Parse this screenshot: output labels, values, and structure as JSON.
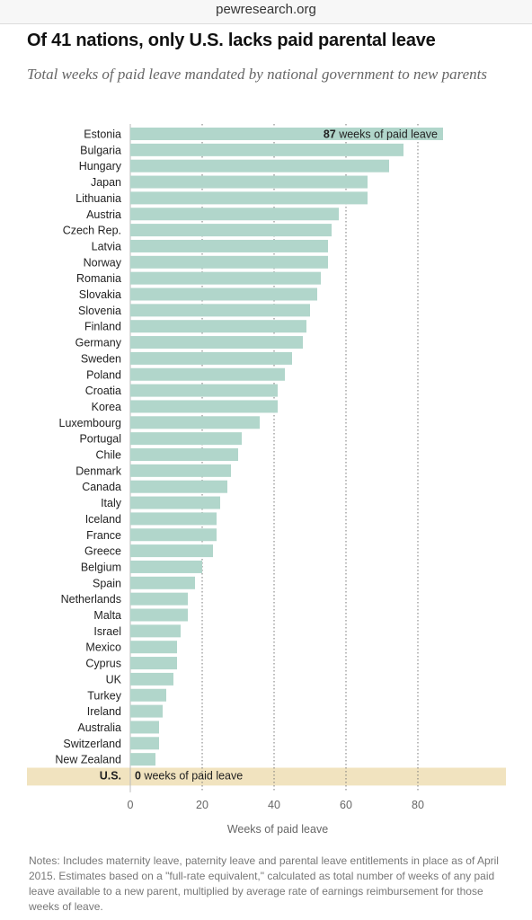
{
  "browser": {
    "url": "pewresearch.org"
  },
  "header": {
    "title": "Of 41 nations, only U.S. lacks paid parental leave",
    "subtitle": "Total weeks of paid leave mandated by national government to new parents"
  },
  "notes": "Notes: Includes maternity leave, paternity leave and parental leave entitlements in place as of April 2015. Estimates based on a \"full-rate equivalent,\" calculated as total number of weeks of any paid leave available to a new parent, multiplied by average rate of earnings reimbursement for those weeks of leave.",
  "colors": {
    "bar": "#b1d6cb",
    "highlight": "#f1e3bf",
    "gridline": "#777777"
  },
  "chart_data": {
    "type": "bar",
    "orientation": "horizontal",
    "categories": [
      "Estonia",
      "Bulgaria",
      "Hungary",
      "Japan",
      "Lithuania",
      "Austria",
      "Czech Rep.",
      "Latvia",
      "Norway",
      "Romania",
      "Slovakia",
      "Slovenia",
      "Finland",
      "Germany",
      "Sweden",
      "Poland",
      "Croatia",
      "Korea",
      "Luxembourg",
      "Portugal",
      "Chile",
      "Denmark",
      "Canada",
      "Italy",
      "Iceland",
      "France",
      "Greece",
      "Belgium",
      "Spain",
      "Netherlands",
      "Malta",
      "Israel",
      "Mexico",
      "Cyprus",
      "UK",
      "Turkey",
      "Ireland",
      "Australia",
      "Switzerland",
      "New Zealand",
      "U.S."
    ],
    "values": [
      87,
      76,
      72,
      66,
      66,
      58,
      56,
      55,
      55,
      53,
      52,
      50,
      49,
      48,
      45,
      43,
      41,
      41,
      36,
      31,
      30,
      28,
      27,
      25,
      24,
      24,
      23,
      20,
      18,
      16,
      16,
      14,
      13,
      13,
      12,
      10,
      9,
      8,
      8,
      7,
      0
    ],
    "highlight_category": "U.S.",
    "annotations": [
      {
        "category": "Estonia",
        "value_text": "87",
        "text": " weeks of paid leave"
      },
      {
        "category": "U.S.",
        "value_text": "0",
        "text": " weeks of paid leave"
      }
    ],
    "xlabel": "Weeks of paid leave",
    "xlim": [
      0,
      105
    ],
    "xticks": [
      0,
      20,
      40,
      60,
      80
    ],
    "grid": "vertical dotted"
  }
}
